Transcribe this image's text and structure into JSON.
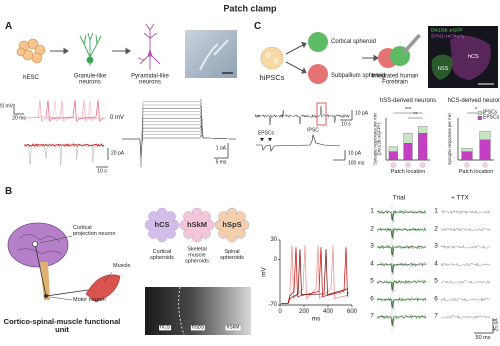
{
  "title": "Patch clamp",
  "panel_a": {
    "label": "A",
    "cells": [
      "hESC",
      "Granule-like neurons",
      "Pyramidal-like neurons"
    ],
    "trace_labels": [
      "0 mV",
      "20 mV",
      "20 ms",
      "20 pA",
      "10 s",
      "1 nA",
      "5 ms"
    ]
  },
  "panel_c": {
    "label": "C",
    "source": "hiPSCs",
    "spheroids": [
      "Cortical spheroid",
      "Subpallium spheroid"
    ],
    "assembloid": "Integrated human Forebrain",
    "image_labels": [
      "Dlx1/2b::eGFP",
      "SYN1::mCherry",
      "hCS",
      "hSS"
    ],
    "trace_labels": [
      "10 pA",
      "10 s",
      "EPSCs",
      "IPSC",
      "10 pA",
      "100 ms"
    ],
    "charts": [
      {
        "type": "bar",
        "title": "hSS-derived neurons",
        "ylabel": "Synaptic responses per min (Dlx1/2b::eGFP+)",
        "xlabel": "Patch location",
        "ylim": [
          0,
          25
        ],
        "significance": [
          "***",
          "**"
        ],
        "series": [
          {
            "color": "#c43fc4",
            "values": [
              5,
              10,
              16
            ]
          },
          {
            "color": "#c8e6c4",
            "values": [
              3,
              6,
              4
            ]
          }
        ]
      },
      {
        "type": "bar",
        "title": "hCS-derived neurons",
        "ylabel": "Synaptic responses per min",
        "xlabel": "Patch location",
        "ylim": [
          0,
          25
        ],
        "significance": [
          "*"
        ],
        "series": [
          {
            "name": "EPSCs",
            "color": "#c43fc4",
            "values": [
              5,
              12
            ]
          },
          {
            "name": "IPSCs",
            "color": "#c8e6c4",
            "values": [
              2,
              5
            ]
          }
        ]
      }
    ]
  },
  "panel_b": {
    "label": "B",
    "diagram_labels": [
      "Cortical projection neuron",
      "Motor neuron",
      "Muscle"
    ],
    "unit": "Cortico-spinal-muscle functional unit",
    "spheroids": [
      {
        "abbr": "hCS",
        "name": "Cortical spheroids",
        "color": "#d3bde9"
      },
      {
        "abbr": "hSkM",
        "name": "Skeletal muscle spheroids",
        "color": "#f4c6da"
      },
      {
        "abbr": "hSpS",
        "name": "Spinal spheroids",
        "color": "#f3cfae"
      }
    ],
    "image_labels": [
      "hCS",
      "hSpS",
      "hSkM"
    ],
    "ap_chart": {
      "ylabel": "mV",
      "xlabel": "ms",
      "ylim": [
        -70,
        30
      ],
      "yticks": [
        30,
        0,
        -70
      ],
      "xlim": [
        0,
        600
      ],
      "xticks": [
        0,
        200,
        400,
        600
      ]
    },
    "traces": {
      "columns": [
        "Trial",
        "+ TTX"
      ],
      "rows": [
        "1",
        "2",
        "3",
        "4",
        "5",
        "6",
        "7"
      ],
      "scale": [
        "25 pA",
        "50 ms"
      ]
    }
  }
}
